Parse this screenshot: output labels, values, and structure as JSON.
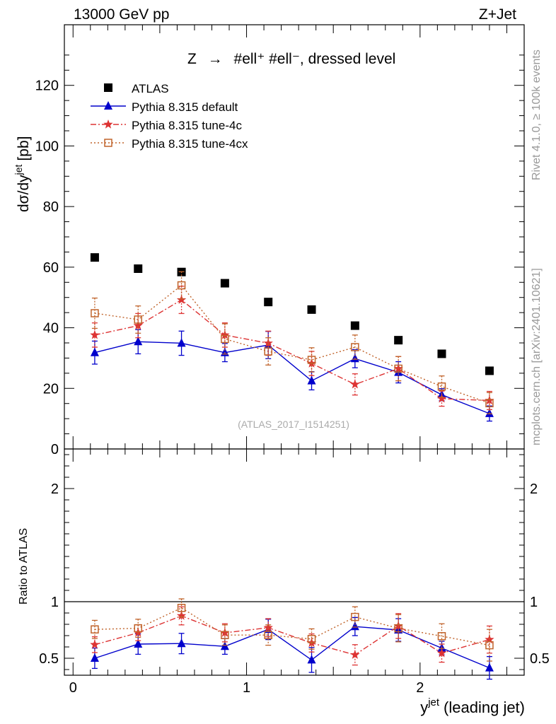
{
  "header": {
    "energy_label": "13000 GeV pp",
    "process_label": "Z+Jet",
    "side_label_top": "Rivet 4.1.0, ≥ 100k events",
    "side_label_bottom": "mcplots.cern.ch [arXiv:2401.10621]",
    "watermark": "(ATLAS_2017_I1514251)"
  },
  "colors": {
    "atlas": "#000000",
    "default": "#0000cc",
    "tune4c": "#dd3333",
    "tune4cx": "#c0632a"
  },
  "chart_data": [
    {
      "type": "scatter",
      "title": "Z → #ell⁺ #ell⁻, dressed level",
      "title_prefix": "Z",
      "title_arrow": "→",
      "title_suffix": "#ell⁺ #ell⁻, dressed level",
      "ylabel": "dσ/dy",
      "ylabel_sup": "jet",
      "ylabel_unit": "[pb]",
      "xlim": [
        -0.05,
        2.6
      ],
      "ylim": [
        0,
        140
      ],
      "yticks": [
        0,
        20,
        40,
        60,
        80,
        100,
        120
      ],
      "x": [
        0.125,
        0.375,
        0.625,
        0.875,
        1.125,
        1.375,
        1.625,
        1.875,
        2.125,
        2.4
      ],
      "series": [
        {
          "name": "ATLAS",
          "style": "square-filled",
          "values": [
            63.2,
            59.5,
            58.4,
            54.7,
            48.5,
            46.0,
            40.7,
            35.9,
            31.4,
            25.8
          ],
          "errors": [
            0.6,
            0.6,
            0.6,
            0.6,
            0.5,
            0.5,
            0.5,
            0.5,
            0.5,
            0.5
          ]
        },
        {
          "name": "Pythia 8.315 default",
          "style": "triangle-filled",
          "values": [
            31.8,
            35.4,
            34.9,
            31.8,
            34.3,
            22.5,
            29.8,
            25.3,
            17.9,
            11.7
          ],
          "errors": [
            3.8,
            4.0,
            4.0,
            3.0,
            4.5,
            3.0,
            3.0,
            3.5,
            2.0,
            2.5
          ]
        },
        {
          "name": "Pythia 8.315 tune-4c",
          "style": "star",
          "values": [
            37.6,
            40.7,
            49.2,
            37.6,
            34.9,
            28.2,
            21.3,
            26.5,
            16.6,
            16.0
          ],
          "errors": [
            4.0,
            4.0,
            4.5,
            4.0,
            4.0,
            4.0,
            3.5,
            4.0,
            2.5,
            3.0
          ]
        },
        {
          "name": "Pythia 8.315 tune-4cx",
          "style": "square-open",
          "values": [
            44.8,
            42.7,
            54.0,
            36.3,
            32.2,
            29.4,
            33.6,
            26.5,
            20.6,
            15.1
          ],
          "errors": [
            5.0,
            4.5,
            4.5,
            5.0,
            4.5,
            4.0,
            4.0,
            4.0,
            3.5,
            3.5
          ]
        }
      ]
    },
    {
      "type": "scatter",
      "title": "",
      "ylabel": "Ratio to ATLAS",
      "xlabel": "y",
      "xlabel_sup": "jet",
      "xlabel_rest": "(leading jet)",
      "xlim": [
        -0.05,
        2.6
      ],
      "ylim": [
        0.35,
        2.35
      ],
      "xticks": [
        0,
        1,
        2
      ],
      "yticks": [
        0.5,
        1,
        2
      ],
      "reference_line": 1,
      "x": [
        0.125,
        0.375,
        0.625,
        0.875,
        1.125,
        1.375,
        1.625,
        1.875,
        2.125,
        2.4
      ],
      "series": [
        {
          "name": "Pythia 8.315 default",
          "style": "triangle-filled",
          "values": [
            0.5,
            0.625,
            0.63,
            0.605,
            0.755,
            0.485,
            0.78,
            0.75,
            0.59,
            0.415
          ],
          "errors": [
            0.09,
            0.09,
            0.09,
            0.07,
            0.09,
            0.11,
            0.08,
            0.1,
            0.06,
            0.1
          ]
        },
        {
          "name": "Pythia 8.315 tune-4c",
          "style": "star",
          "values": [
            0.62,
            0.725,
            0.875,
            0.725,
            0.77,
            0.635,
            0.53,
            0.785,
            0.545,
            0.665
          ],
          "errors": [
            0.07,
            0.07,
            0.08,
            0.08,
            0.08,
            0.08,
            0.09,
            0.11,
            0.08,
            0.12
          ]
        },
        {
          "name": "Pythia 8.315 tune-4cx",
          "style": "square-open",
          "values": [
            0.755,
            0.765,
            0.945,
            0.705,
            0.705,
            0.67,
            0.865,
            0.765,
            0.695,
            0.615
          ],
          "errors": [
            0.08,
            0.08,
            0.08,
            0.09,
            0.09,
            0.09,
            0.09,
            0.12,
            0.11,
            0.14
          ]
        }
      ]
    }
  ]
}
